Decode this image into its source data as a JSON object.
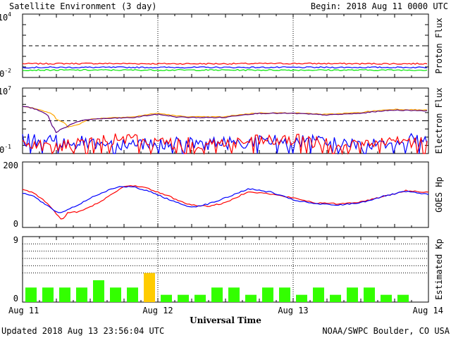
{
  "header": {
    "title": "Satellite Environment (3 day)",
    "begin": "Begin:  2018 Aug 11 0000 UTC"
  },
  "footer": {
    "updated": "Updated 2018 Aug 13 23:56:04 UTC",
    "credit": "NOAA/SWPC Boulder, CO USA"
  },
  "x_axis": {
    "label": "Universal Time",
    "ticks": [
      "Aug 11",
      "Aug 12",
      "Aug 13",
      "Aug 14"
    ],
    "range_hours": [
      0,
      72
    ]
  },
  "colors": {
    "red": "#ff0000",
    "blue": "#0000ff",
    "green": "#00e600",
    "orange": "#ffa500",
    "purple": "#5a0080",
    "kp_green": "#33ff00",
    "kp_yellow": "#ffcc00",
    "kp_red": "#ff0000"
  },
  "chart_data": [
    {
      "type": "line",
      "ylabel": "Proton Flux",
      "scale": "log",
      "ylim": [
        0.01,
        10000
      ],
      "y_ticks": [
        {
          "base": "10",
          "exp": "4",
          "value": 10000
        },
        {
          "base": "10",
          "exp": "-2",
          "value": 0.01
        }
      ],
      "threshold": 10,
      "series": [
        {
          "color": "red",
          "x": [
            0,
            12,
            24,
            36,
            48,
            60,
            72
          ],
          "y": [
            0.2,
            0.21,
            0.2,
            0.2,
            0.21,
            0.2,
            0.2
          ]
        },
        {
          "color": "blue",
          "x": [
            0,
            12,
            24,
            36,
            48,
            60,
            72
          ],
          "y": [
            0.09,
            0.09,
            0.09,
            0.09,
            0.09,
            0.09,
            0.09
          ]
        },
        {
          "color": "green",
          "x": [
            0,
            12,
            24,
            36,
            48,
            60,
            72
          ],
          "y": [
            0.05,
            0.05,
            0.05,
            0.05,
            0.05,
            0.05,
            0.05
          ]
        }
      ]
    },
    {
      "type": "line",
      "ylabel": "Electron Flux",
      "scale": "log",
      "ylim": [
        0.1,
        10000000
      ],
      "y_ticks": [
        {
          "base": "10",
          "exp": "7",
          "value": 10000000
        },
        {
          "base": "10",
          "exp": "-1",
          "value": 0.1
        }
      ],
      "threshold": 1000,
      "series": [
        {
          "color": "orange",
          "x": [
            0,
            3,
            6,
            8,
            10,
            12,
            16,
            20,
            24,
            27,
            30,
            36,
            42,
            48,
            54,
            60,
            66,
            72
          ],
          "y": [
            60000,
            20000,
            1500,
            150,
            350,
            1500,
            2500,
            3000,
            8000,
            4000,
            3000,
            3000,
            9000,
            9000,
            6000,
            10000,
            25000,
            20000
          ]
        },
        {
          "color": "purple",
          "x": [
            0,
            3,
            5,
            6,
            8,
            10,
            12,
            16,
            20,
            24,
            27,
            30,
            36,
            42,
            48,
            54,
            60,
            66,
            72
          ],
          "y": [
            60000,
            15000,
            300,
            20,
            200,
            800,
            1500,
            2000,
            2500,
            6000,
            3000,
            2500,
            2500,
            8000,
            8000,
            5000,
            8000,
            20000,
            17000
          ]
        },
        {
          "color": "blue",
          "x": [
            0,
            6,
            12,
            16,
            20,
            24,
            30,
            36,
            42,
            48,
            54,
            60,
            66,
            72
          ],
          "y": [
            5,
            3,
            2,
            1.5,
            2,
            2,
            1.5,
            2,
            3,
            4,
            2,
            1.5,
            3,
            6
          ]
        },
        {
          "color": "red",
          "x": [
            0,
            6,
            12,
            16,
            20,
            24,
            30,
            36,
            42,
            48,
            54,
            60,
            66,
            72
          ],
          "y": [
            2,
            0.5,
            2,
            4,
            6,
            2,
            1.5,
            2,
            3,
            4,
            2,
            1,
            2,
            3
          ]
        }
      ]
    },
    {
      "type": "line",
      "ylabel": "GOES Hp",
      "ylim": [
        0,
        200
      ],
      "y_ticks": [
        {
          "label": "200",
          "value": 200
        },
        {
          "label": "0",
          "value": 0
        }
      ],
      "series": [
        {
          "color": "red",
          "x": [
            0,
            2,
            4,
            6,
            7,
            8,
            10,
            12,
            14,
            16,
            18,
            20,
            22,
            24,
            26,
            28,
            30,
            33,
            36,
            40,
            44,
            48,
            52,
            56,
            60,
            64,
            68,
            72
          ],
          "y": [
            118,
            105,
            80,
            42,
            22,
            45,
            48,
            62,
            82,
            102,
            125,
            128,
            120,
            108,
            95,
            80,
            68,
            65,
            75,
            110,
            102,
            90,
            75,
            72,
            78,
            95,
            112,
            108
          ]
        },
        {
          "color": "blue",
          "x": [
            0,
            2,
            4,
            6,
            7,
            8,
            10,
            12,
            14,
            16,
            18,
            20,
            22,
            24,
            26,
            28,
            30,
            33,
            36,
            40,
            44,
            48,
            52,
            56,
            60,
            64,
            68,
            72
          ],
          "y": [
            105,
            95,
            70,
            48,
            45,
            55,
            70,
            90,
            105,
            120,
            125,
            122,
            112,
            100,
            85,
            72,
            62,
            72,
            90,
            118,
            108,
            84,
            72,
            68,
            76,
            95,
            110,
            100
          ]
        }
      ]
    },
    {
      "type": "bar",
      "ylabel": "Estimated Kp",
      "ylim": [
        0,
        9
      ],
      "y_ticks": [
        {
          "label": "9",
          "value": 9
        },
        {
          "label": "0",
          "value": 0
        }
      ],
      "gridlines": [
        4,
        5,
        6,
        7,
        8
      ],
      "bar_width_hours": 3,
      "values": [
        2,
        2,
        2,
        2,
        3,
        2,
        2,
        4,
        1,
        1,
        1,
        2,
        2,
        1,
        2,
        2,
        1,
        2,
        1,
        2,
        2,
        1,
        1
      ],
      "bar_colors": [
        "kp_green",
        "kp_green",
        "kp_green",
        "kp_green",
        "kp_green",
        "kp_green",
        "kp_green",
        "kp_yellow",
        "kp_green",
        "kp_green",
        "kp_green",
        "kp_green",
        "kp_green",
        "kp_green",
        "kp_green",
        "kp_green",
        "kp_green",
        "kp_green",
        "kp_green",
        "kp_green",
        "kp_green",
        "kp_green",
        "kp_green"
      ]
    }
  ]
}
